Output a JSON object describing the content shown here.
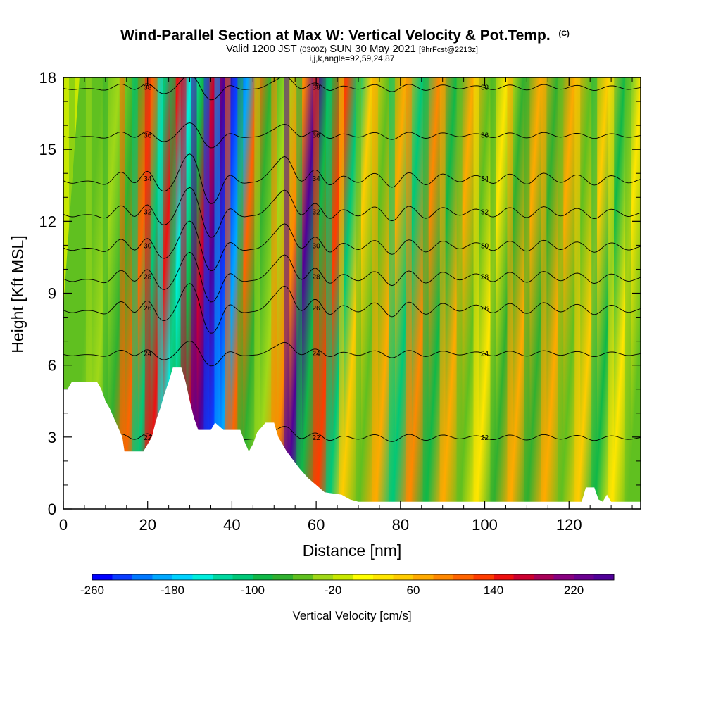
{
  "header": {
    "title": "Wind-Parallel Section at Max W: Vertical Velocity & Pot.Temp.",
    "copyright": "(C)",
    "subtitle_a": "Valid 1200 JST",
    "subtitle_b": "(0300Z)",
    "subtitle_c": "SUN 30 May 2021",
    "subtitle_d": "[9hrFcst@2213z]",
    "subtitle2": "i,j,k,angle=92,59,24,87"
  },
  "chart_data": {
    "type": "heatmap",
    "title": "Wind-Parallel Section at Max W: Vertical Velocity & Pot.Temp.",
    "xlabel": "Distance [nm]",
    "ylabel": "Height [Kft MSL]",
    "xlim": [
      0,
      137
    ],
    "ylim": [
      0,
      18
    ],
    "x_ticks": [
      0,
      20,
      40,
      60,
      80,
      100,
      120
    ],
    "y_ticks": [
      0,
      3,
      6,
      9,
      12,
      15,
      18
    ],
    "colorbar": {
      "title": "Vertical Velocity [cm/s]",
      "range": [
        -260,
        260
      ],
      "tick_values": [
        -260,
        -180,
        -100,
        -20,
        60,
        140,
        220
      ],
      "colors": [
        "#0000ff",
        "#0a3cff",
        "#0078ff",
        "#00a8ff",
        "#00d2ff",
        "#00eedd",
        "#00d8a0",
        "#00c878",
        "#10b848",
        "#30b030",
        "#60c020",
        "#a0d818",
        "#c8e800",
        "#ffff00",
        "#ffe600",
        "#ffcc00",
        "#ffaa00",
        "#ff8800",
        "#ff6400",
        "#ff3c00",
        "#ee1010",
        "#cc0030",
        "#a80058",
        "#880080",
        "#6a0090",
        "#500098"
      ]
    },
    "vertical_velocity_columns": [
      {
        "x": 2,
        "w": -60
      },
      {
        "x": 6,
        "w": -25
      },
      {
        "x": 10,
        "w": -80
      },
      {
        "x": 14,
        "w": 100
      },
      {
        "x": 17,
        "w": -110
      },
      {
        "x": 20,
        "w": 140
      },
      {
        "x": 23,
        "w": -150
      },
      {
        "x": 26,
        "w": -90
      },
      {
        "x": 28.5,
        "w": 160
      },
      {
        "x": 31,
        "w": 240
      },
      {
        "x": 34,
        "w": -230
      },
      {
        "x": 36.5,
        "w": -200
      },
      {
        "x": 39,
        "w": 110
      },
      {
        "x": 42,
        "w": -70
      },
      {
        "x": 46,
        "w": -40
      },
      {
        "x": 50,
        "w": 90
      },
      {
        "x": 53,
        "w": 250
      },
      {
        "x": 56,
        "w": -90
      },
      {
        "x": 60,
        "w": 130
      },
      {
        "x": 63,
        "w": -120
      },
      {
        "x": 66,
        "w": 50
      },
      {
        "x": 70,
        "w": -60
      },
      {
        "x": 74,
        "w": 70
      },
      {
        "x": 78,
        "w": -120
      },
      {
        "x": 82,
        "w": 80
      },
      {
        "x": 86,
        "w": -90
      },
      {
        "x": 90,
        "w": 60
      },
      {
        "x": 94,
        "w": -50
      },
      {
        "x": 98,
        "w": 40
      },
      {
        "x": 102,
        "w": -70
      },
      {
        "x": 106,
        "w": 60
      },
      {
        "x": 110,
        "w": -80
      },
      {
        "x": 114,
        "w": 70
      },
      {
        "x": 118,
        "w": -60
      },
      {
        "x": 122,
        "w": 50
      },
      {
        "x": 126,
        "w": -90
      },
      {
        "x": 130,
        "w": 40
      },
      {
        "x": 134,
        "w": -60
      }
    ],
    "potential_temperature_contours": [
      {
        "level": 22,
        "label": "22"
      },
      {
        "level": 24,
        "label": "24"
      },
      {
        "level": 26,
        "label": "26"
      },
      {
        "level": 28,
        "label": "28"
      },
      {
        "level": 30,
        "label": "30"
      },
      {
        "level": 32,
        "label": "32"
      },
      {
        "level": 34,
        "label": "34"
      },
      {
        "level": 36,
        "label": "36"
      },
      {
        "level": 38,
        "label": "38"
      }
    ],
    "terrain_profile": [
      [
        0,
        5.0
      ],
      [
        1,
        5.0
      ],
      [
        2,
        5.3
      ],
      [
        5,
        5.3
      ],
      [
        8,
        5.3
      ],
      [
        9,
        5.0
      ],
      [
        10,
        4.5
      ],
      [
        11,
        4.2
      ],
      [
        12,
        3.8
      ],
      [
        13,
        3.4
      ],
      [
        14,
        3.0
      ],
      [
        14.5,
        2.4
      ],
      [
        17,
        2.4
      ],
      [
        19,
        2.4
      ],
      [
        20,
        2.7
      ],
      [
        21,
        3.0
      ],
      [
        22,
        3.7
      ],
      [
        23,
        4.2
      ],
      [
        24,
        4.8
      ],
      [
        25,
        5.3
      ],
      [
        26,
        5.9
      ],
      [
        28,
        5.9
      ],
      [
        29,
        5.3
      ],
      [
        30,
        4.5
      ],
      [
        31,
        3.8
      ],
      [
        32,
        3.3
      ],
      [
        35,
        3.3
      ],
      [
        36,
        3.6
      ],
      [
        38,
        3.3
      ],
      [
        42,
        3.3
      ],
      [
        43,
        2.8
      ],
      [
        44,
        2.4
      ],
      [
        45,
        2.7
      ],
      [
        46,
        3.2
      ],
      [
        48,
        3.6
      ],
      [
        50,
        3.6
      ],
      [
        51,
        3.0
      ],
      [
        53,
        2.4
      ],
      [
        56,
        1.7
      ],
      [
        58,
        1.3
      ],
      [
        60,
        1.0
      ],
      [
        62,
        0.7
      ],
      [
        66,
        0.6
      ],
      [
        68,
        0.4
      ],
      [
        70,
        0.3
      ],
      [
        123,
        0.3
      ],
      [
        124,
        0.9
      ],
      [
        126,
        0.9
      ],
      [
        127,
        0.4
      ],
      [
        128,
        0.3
      ],
      [
        129,
        0.6
      ],
      [
        130,
        0.3
      ],
      [
        137,
        0.3
      ]
    ]
  }
}
